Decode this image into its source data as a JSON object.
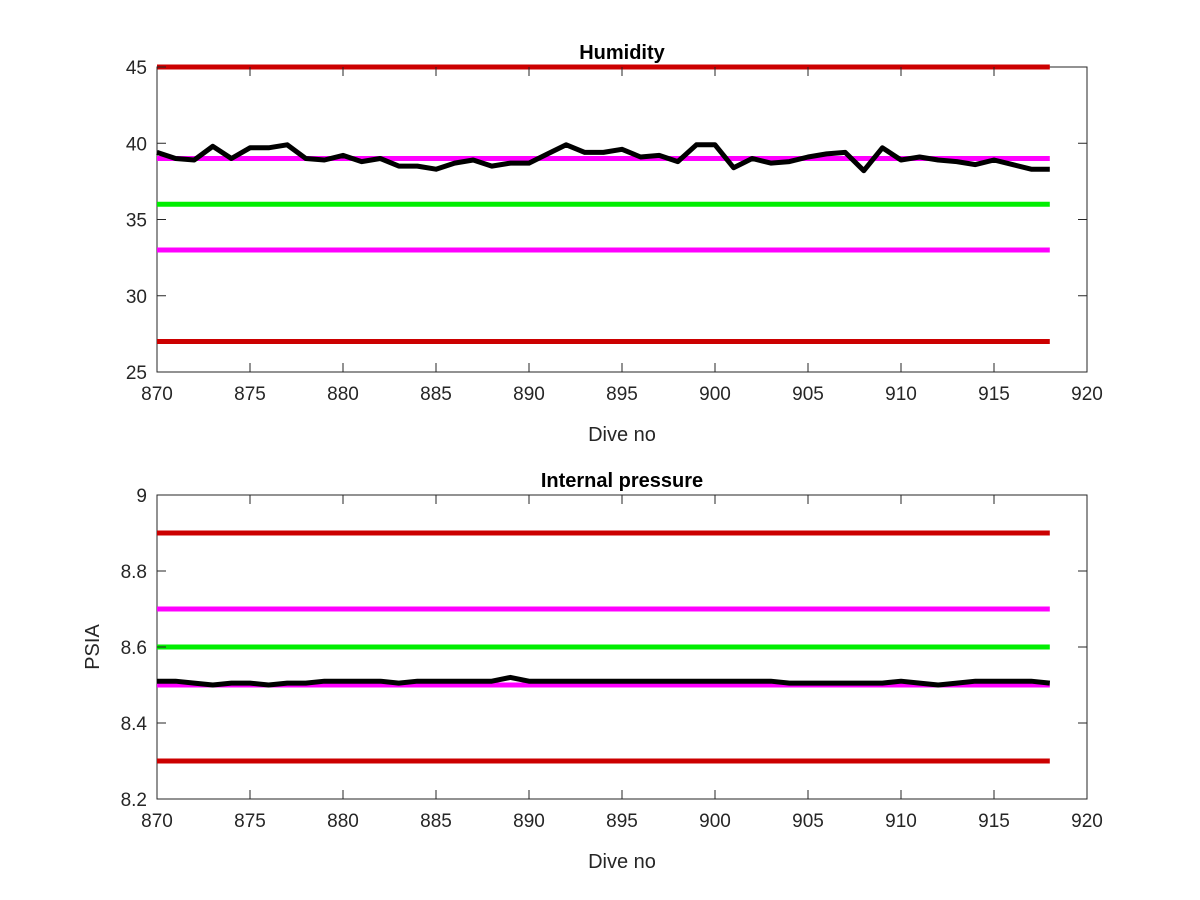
{
  "colors": {
    "limit_red": "#cc0000",
    "limit_magenta": "#ff00ff",
    "target_green": "#00ee00",
    "measured": "#000000",
    "axes": "#262626"
  },
  "chart_data": [
    {
      "type": "line",
      "title": "Humidity",
      "xlabel": "Dive no",
      "ylabel": "",
      "xlim": [
        870,
        920
      ],
      "ylim": [
        25,
        45
      ],
      "xticks": [
        "870",
        "875",
        "880",
        "885",
        "890",
        "895",
        "900",
        "905",
        "910",
        "915",
        "920"
      ],
      "yticks": [
        "25",
        "30",
        "35",
        "40",
        "45"
      ],
      "grid": false,
      "reference_lines": [
        {
          "value": 45,
          "color": "#cc0000"
        },
        {
          "value": 39,
          "color": "#ff00ff"
        },
        {
          "value": 36,
          "color": "#00ee00"
        },
        {
          "value": 33,
          "color": "#ff00ff"
        },
        {
          "value": 27,
          "color": "#cc0000"
        }
      ],
      "series": [
        {
          "color": "#000000",
          "x": [
            870,
            871,
            872,
            873,
            874,
            875,
            876,
            877,
            878,
            879,
            880,
            881,
            882,
            883,
            884,
            885,
            886,
            887,
            888,
            889,
            890,
            891,
            892,
            893,
            894,
            895,
            896,
            897,
            898,
            899,
            900,
            901,
            902,
            903,
            904,
            905,
            906,
            907,
            908,
            909,
            910,
            911,
            912,
            913,
            914,
            915,
            916,
            917,
            918
          ],
          "y": [
            39.4,
            39.0,
            38.9,
            39.8,
            39.0,
            39.7,
            39.7,
            39.9,
            39.0,
            38.9,
            39.2,
            38.8,
            39.0,
            38.5,
            38.5,
            38.3,
            38.7,
            38.9,
            38.5,
            38.7,
            38.7,
            39.3,
            39.9,
            39.4,
            39.4,
            39.6,
            39.1,
            39.2,
            38.8,
            39.9,
            39.9,
            38.4,
            39.0,
            38.7,
            38.8,
            39.1,
            39.3,
            39.4,
            38.2,
            39.7,
            38.9,
            39.1,
            38.9,
            38.8,
            38.6,
            38.9,
            38.6,
            38.3,
            38.3
          ]
        }
      ]
    },
    {
      "type": "line",
      "title": "Internal pressure",
      "xlabel": "Dive no",
      "ylabel": "PSIA",
      "xlim": [
        870,
        920
      ],
      "ylim": [
        8.2,
        9.0
      ],
      "xticks": [
        "870",
        "875",
        "880",
        "885",
        "890",
        "895",
        "900",
        "905",
        "910",
        "915",
        "920"
      ],
      "yticks": [
        "8.2",
        "8.4",
        "8.6",
        "8.8",
        "9"
      ],
      "grid": false,
      "reference_lines": [
        {
          "value": 8.9,
          "color": "#cc0000"
        },
        {
          "value": 8.7,
          "color": "#ff00ff"
        },
        {
          "value": 8.6,
          "color": "#00ee00"
        },
        {
          "value": 8.5,
          "color": "#ff00ff"
        },
        {
          "value": 8.3,
          "color": "#cc0000"
        }
      ],
      "series": [
        {
          "color": "#000000",
          "x": [
            870,
            871,
            872,
            873,
            874,
            875,
            876,
            877,
            878,
            879,
            880,
            881,
            882,
            883,
            884,
            885,
            886,
            887,
            888,
            889,
            890,
            891,
            892,
            893,
            894,
            895,
            896,
            897,
            898,
            899,
            900,
            901,
            902,
            903,
            904,
            905,
            906,
            907,
            908,
            909,
            910,
            911,
            912,
            913,
            914,
            915,
            916,
            917,
            918
          ],
          "y": [
            8.51,
            8.51,
            8.505,
            8.5,
            8.505,
            8.505,
            8.5,
            8.505,
            8.505,
            8.51,
            8.51,
            8.51,
            8.51,
            8.505,
            8.51,
            8.51,
            8.51,
            8.51,
            8.51,
            8.52,
            8.51,
            8.51,
            8.51,
            8.51,
            8.51,
            8.51,
            8.51,
            8.51,
            8.51,
            8.51,
            8.51,
            8.51,
            8.51,
            8.51,
            8.505,
            8.505,
            8.505,
            8.505,
            8.505,
            8.505,
            8.51,
            8.505,
            8.5,
            8.505,
            8.51,
            8.51,
            8.51,
            8.51,
            8.505
          ]
        }
      ]
    }
  ]
}
